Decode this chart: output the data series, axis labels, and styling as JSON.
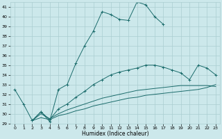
{
  "background_color": "#cce8eb",
  "grid_color": "#aacdd0",
  "line_color": "#1a6b6b",
  "xlabel_label": "Humidex (Indice chaleur)",
  "ylim": [
    29,
    41.5
  ],
  "xlim": [
    -0.5,
    23.5
  ],
  "curve1_x": [
    0,
    1,
    2,
    3,
    4,
    5,
    6,
    7,
    8,
    9,
    10,
    11,
    12,
    13,
    14,
    15,
    16,
    17
  ],
  "curve1_y": [
    32.5,
    31.0,
    29.3,
    30.2,
    29.2,
    32.5,
    33.0,
    35.2,
    37.0,
    38.5,
    40.5,
    40.2,
    39.7,
    39.6,
    41.5,
    41.2,
    40.0,
    39.2
  ],
  "curve2_x": [
    2,
    3,
    4,
    5,
    6,
    7,
    8,
    9,
    10,
    11,
    12,
    13,
    14,
    15,
    16,
    17,
    18,
    19,
    20,
    21,
    22,
    23
  ],
  "curve2_y": [
    29.3,
    30.2,
    29.4,
    30.5,
    31.0,
    31.7,
    32.3,
    33.0,
    33.5,
    34.0,
    34.3,
    34.5,
    34.7,
    35.0,
    35.0,
    34.8,
    34.5,
    34.2,
    33.5,
    35.0,
    34.7,
    34.0
  ],
  "curve3_x": [
    2,
    3,
    4,
    5,
    6,
    7,
    8,
    9,
    10,
    11,
    12,
    13,
    14,
    15,
    16,
    17,
    18,
    19,
    20,
    21,
    22,
    23
  ],
  "curve3_y": [
    29.3,
    29.6,
    29.4,
    29.8,
    30.0,
    30.3,
    30.5,
    30.8,
    31.0,
    31.2,
    31.4,
    31.6,
    31.7,
    31.9,
    32.0,
    32.1,
    32.2,
    32.3,
    32.4,
    32.5,
    32.7,
    33.0
  ],
  "curve4_x": [
    2,
    3,
    4,
    5,
    6,
    7,
    8,
    9,
    10,
    11,
    12,
    13,
    14,
    15,
    16,
    17,
    18,
    19,
    20,
    21,
    22,
    23
  ],
  "curve4_y": [
    29.3,
    30.0,
    29.5,
    30.0,
    30.4,
    30.7,
    31.0,
    31.3,
    31.6,
    31.8,
    32.0,
    32.2,
    32.4,
    32.5,
    32.6,
    32.7,
    32.8,
    32.9,
    32.9,
    32.9,
    32.9,
    32.8
  ]
}
